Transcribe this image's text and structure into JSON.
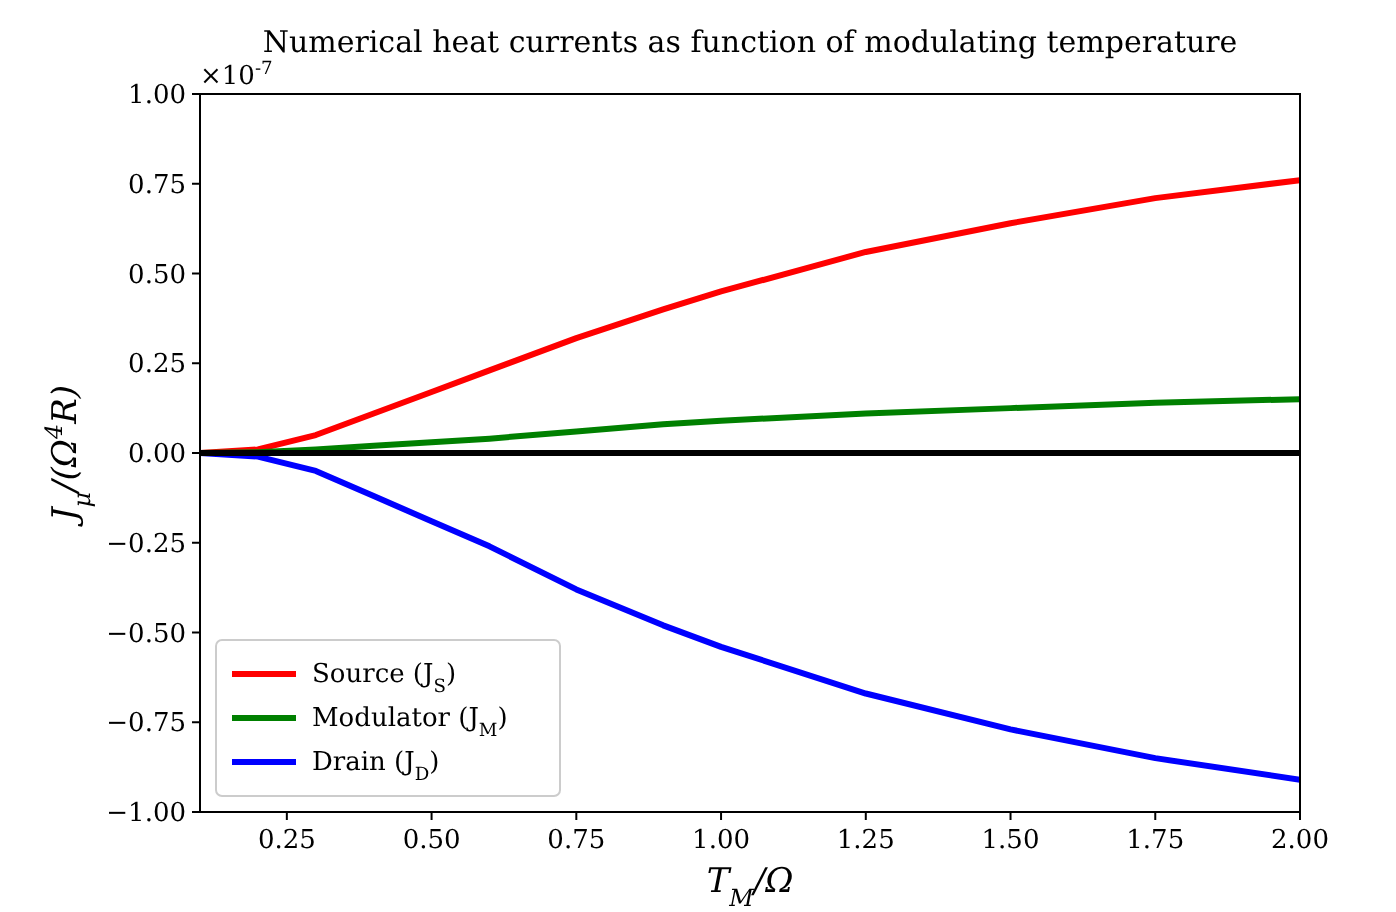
{
  "chart_data": {
    "type": "line",
    "title": "Numerical heat currents as function of modulating temperature",
    "xlabel": "T$_{M}$/Ω",
    "ylabel": "J$_{μ}$/(Ω$^{4}$R)",
    "annotations": [
      "×10$^{-7}$"
    ],
    "x": [
      0.1,
      0.2,
      0.3,
      0.4,
      0.5,
      0.6,
      0.75,
      0.9,
      1.0,
      1.25,
      1.5,
      1.75,
      2.0
    ],
    "series": [
      {
        "name": "Source (J$_{S}$)",
        "color": "#ff0000",
        "values": [
          0,
          0.01,
          0.05,
          0.11,
          0.17,
          0.23,
          0.32,
          0.4,
          0.45,
          0.56,
          0.64,
          0.71,
          0.76
        ]
      },
      {
        "name": "Modulator (J$_{M}$)",
        "color": "#008000",
        "values": [
          0,
          0.002,
          0.01,
          0.02,
          0.03,
          0.04,
          0.06,
          0.08,
          0.09,
          0.11,
          0.125,
          0.14,
          0.15
        ]
      },
      {
        "name": "Drain (J$_{D}$)",
        "color": "#0000ff",
        "values": [
          0,
          -0.01,
          -0.05,
          -0.12,
          -0.19,
          -0.26,
          -0.38,
          -0.48,
          -0.54,
          -0.67,
          -0.77,
          -0.85,
          -0.91
        ]
      },
      {
        "color": "#000000",
        "x": [
          0.1,
          2.0
        ],
        "values": [
          0,
          0
        ]
      }
    ],
    "xlim": [
      0.1,
      2.0
    ],
    "xticks": [
      {
        "value": 0.25,
        "label": "0.25"
      },
      {
        "value": 0.5,
        "label": "0.50"
      },
      {
        "value": 0.75,
        "label": "0.75"
      },
      {
        "value": 1.0,
        "label": "1.00"
      },
      {
        "value": 1.25,
        "label": "1.25"
      },
      {
        "value": 1.5,
        "label": "1.50"
      },
      {
        "value": 1.75,
        "label": "1.75"
      },
      {
        "value": 2.0,
        "label": "2.00"
      }
    ],
    "ylim": [
      -1,
      1
    ],
    "yticks": [
      {
        "value": -1,
        "label": "−1.00"
      },
      {
        "value": -0.75,
        "label": "−0.75"
      },
      {
        "value": -0.5,
        "label": "−0.50"
      },
      {
        "value": -0.25,
        "label": "−0.25"
      },
      {
        "value": 0,
        "label": "0.00"
      },
      {
        "value": 0.25,
        "label": "0.25"
      },
      {
        "value": 0.5,
        "label": "0.50"
      },
      {
        "value": 0.75,
        "label": "0.75"
      },
      {
        "value": 1,
        "label": "1.00"
      }
    ],
    "legend": "bottom left",
    "grid": false,
    "marker": "none",
    "line_style": "solid"
  }
}
